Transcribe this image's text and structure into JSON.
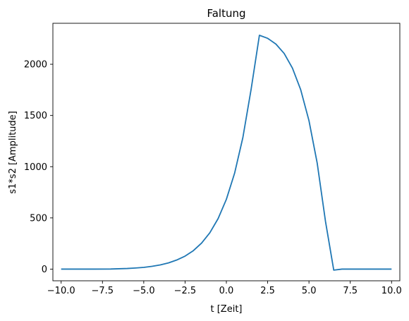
{
  "chart_data": {
    "type": "line",
    "title": "Faltung",
    "xlabel": "t [Zeit]",
    "ylabel": "s1*s2 [Amplitude]",
    "xlim": [
      -10.5,
      10.5
    ],
    "ylim": [
      -114,
      2400
    ],
    "x_ticks": [
      -10.0,
      -7.5,
      -5.0,
      -2.5,
      0.0,
      2.5,
      5.0,
      7.5,
      10.0
    ],
    "x_tick_labels": [
      "−10.0",
      "−7.5",
      "−5.0",
      "−2.5",
      "0.0",
      "2.5",
      "5.0",
      "7.5",
      "10.0"
    ],
    "y_ticks": [
      0,
      500,
      1000,
      1500,
      2000
    ],
    "y_tick_labels": [
      "0",
      "500",
      "1000",
      "1500",
      "2000"
    ],
    "grid": false,
    "series": [
      {
        "color": "#1f77b4",
        "x": [
          -10,
          -9,
          -8,
          -7,
          -6,
          -5.5,
          -5,
          -4.5,
          -4,
          -3.5,
          -3,
          -2.5,
          -2,
          -1.5,
          -1,
          -0.5,
          0,
          0.5,
          1,
          1.5,
          2,
          2.5,
          3,
          3.5,
          4,
          4.5,
          5,
          5.5,
          6,
          6.5,
          7,
          7.05,
          8,
          9,
          10
        ],
        "y": [
          0,
          0,
          0,
          1,
          6,
          11,
          17,
          27,
          41,
          61,
          89,
          127,
          180,
          254,
          355,
          493,
          681,
          937,
          1285,
          1757,
          2283,
          2253,
          2197,
          2105,
          1962,
          1751,
          1450,
          1033,
          466,
          -10,
          0,
          0,
          0,
          0,
          0
        ]
      }
    ]
  }
}
